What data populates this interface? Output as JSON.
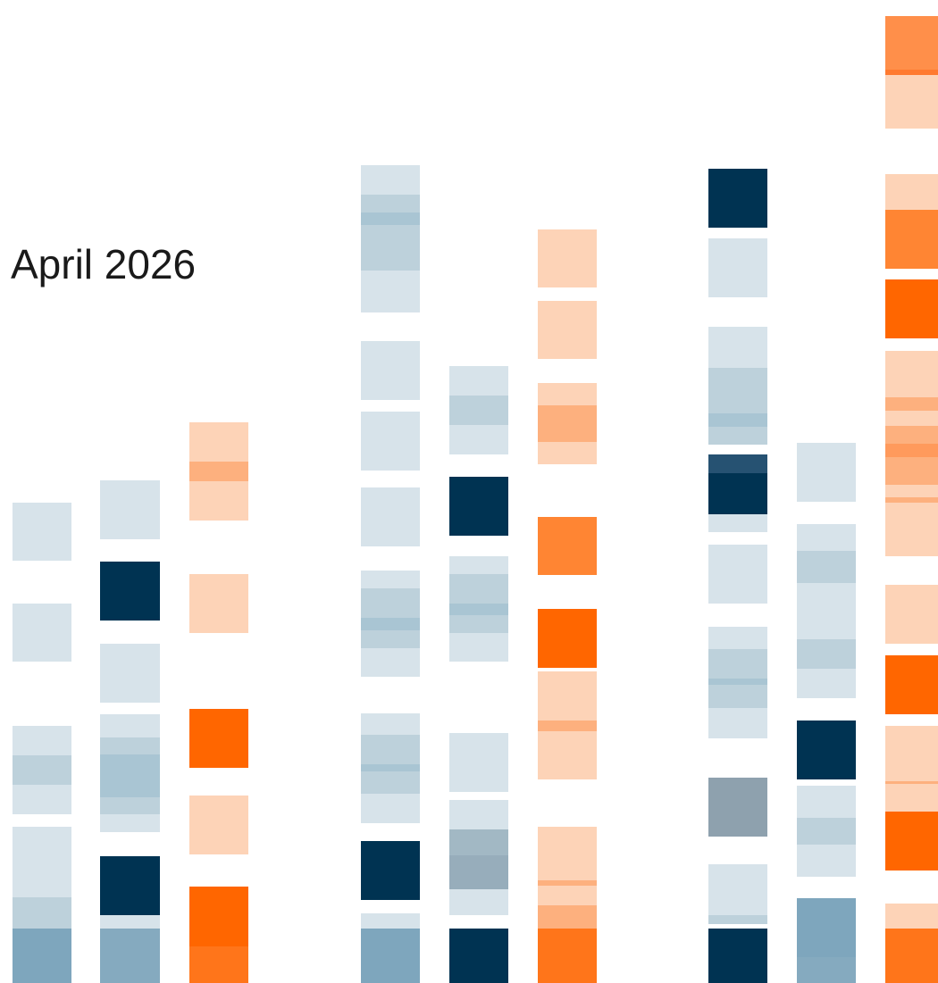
{
  "title": "April 2026"
}
